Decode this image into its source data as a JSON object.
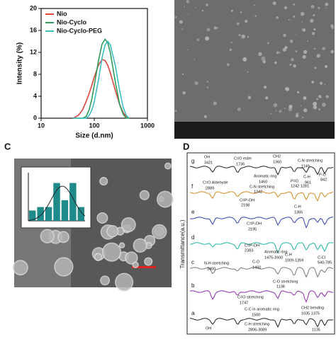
{
  "chart_data": [
    {
      "type": "line",
      "x_label": "Size (d.nm)",
      "y_label": "Intensity (%)",
      "x": [
        40,
        50,
        60,
        70,
        80,
        90,
        100,
        120,
        140,
        160,
        180,
        200,
        250,
        300,
        350,
        400,
        450
      ],
      "series": [
        {
          "name": "Nio",
          "color": "#e0443c",
          "values": [
            0,
            0.5,
            1.5,
            3,
            4.5,
            6,
            7.5,
            9.7,
            10.7,
            10.5,
            9.6,
            8.3,
            5,
            2.5,
            1,
            0.3,
            0
          ]
        },
        {
          "name": "Nio-Cyclo",
          "color": "#2e9a5c",
          "values": [
            0,
            0,
            0,
            0.3,
            1.5,
            3.5,
            6,
            10.5,
            13.5,
            14.4,
            13.7,
            12,
            6.5,
            2.5,
            0.7,
            0,
            0
          ]
        },
        {
          "name": "Nio-Cyclo-PEG",
          "color": "#3bbfc0",
          "values": [
            0,
            0,
            0,
            0,
            0.5,
            1.5,
            3,
            7,
            11,
            13.4,
            14,
            13.4,
            9.5,
            5,
            2,
            0.5,
            0
          ]
        }
      ],
      "xlim": [
        10,
        1000
      ],
      "xticks": [
        10,
        100,
        1000
      ],
      "log_x": true,
      "ylim": [
        0,
        20
      ],
      "yticks": [
        0,
        4,
        8,
        12,
        16,
        20
      ],
      "legend": "top-left"
    },
    {
      "type": "bar",
      "categories": [
        null,
        null,
        null,
        null,
        null,
        null,
        null
      ],
      "values": [
        1.5,
        2,
        2,
        5.5,
        3,
        5.5,
        2
      ],
      "color": "#1f8a8a",
      "ylim": [
        0,
        7
      ]
    }
  ],
  "panels": {
    "C": {
      "label": "C"
    },
    "D": {
      "label": "D",
      "y_label": "Transmittance(a.u.)",
      "rows": [
        "g",
        "f",
        "e",
        "d",
        "c",
        "b",
        "a"
      ],
      "annotations": [
        "OH",
        "3421",
        "C=O ester",
        "1736",
        "CH2",
        "1360",
        "C-N stretching",
        "1149",
        "Aromatic ring",
        "1460",
        "C-N stretching",
        "1342",
        "P=O",
        "1242 1281",
        "P-O",
        "842",
        "C-H",
        "961",
        "C=O Aldehyde",
        "2889",
        "C=P-OH",
        "2198",
        "C-H",
        "1365",
        "C=P-OH",
        "2195",
        "C=P-OH",
        "2383",
        "Aromatic ring",
        "1475-1600",
        "C-O",
        "1460",
        "C-H",
        "1009-1359",
        "C-Cl",
        "540-785",
        "N-H stretching",
        "3400",
        "C-O stretching",
        "1138",
        "C=O stretching",
        "1747",
        "C-C in aromatic ring",
        "1500",
        "CH2 bending",
        "1035 1375",
        "C-H stretching",
        "2806-3089",
        "OH",
        "1135"
      ]
    }
  }
}
